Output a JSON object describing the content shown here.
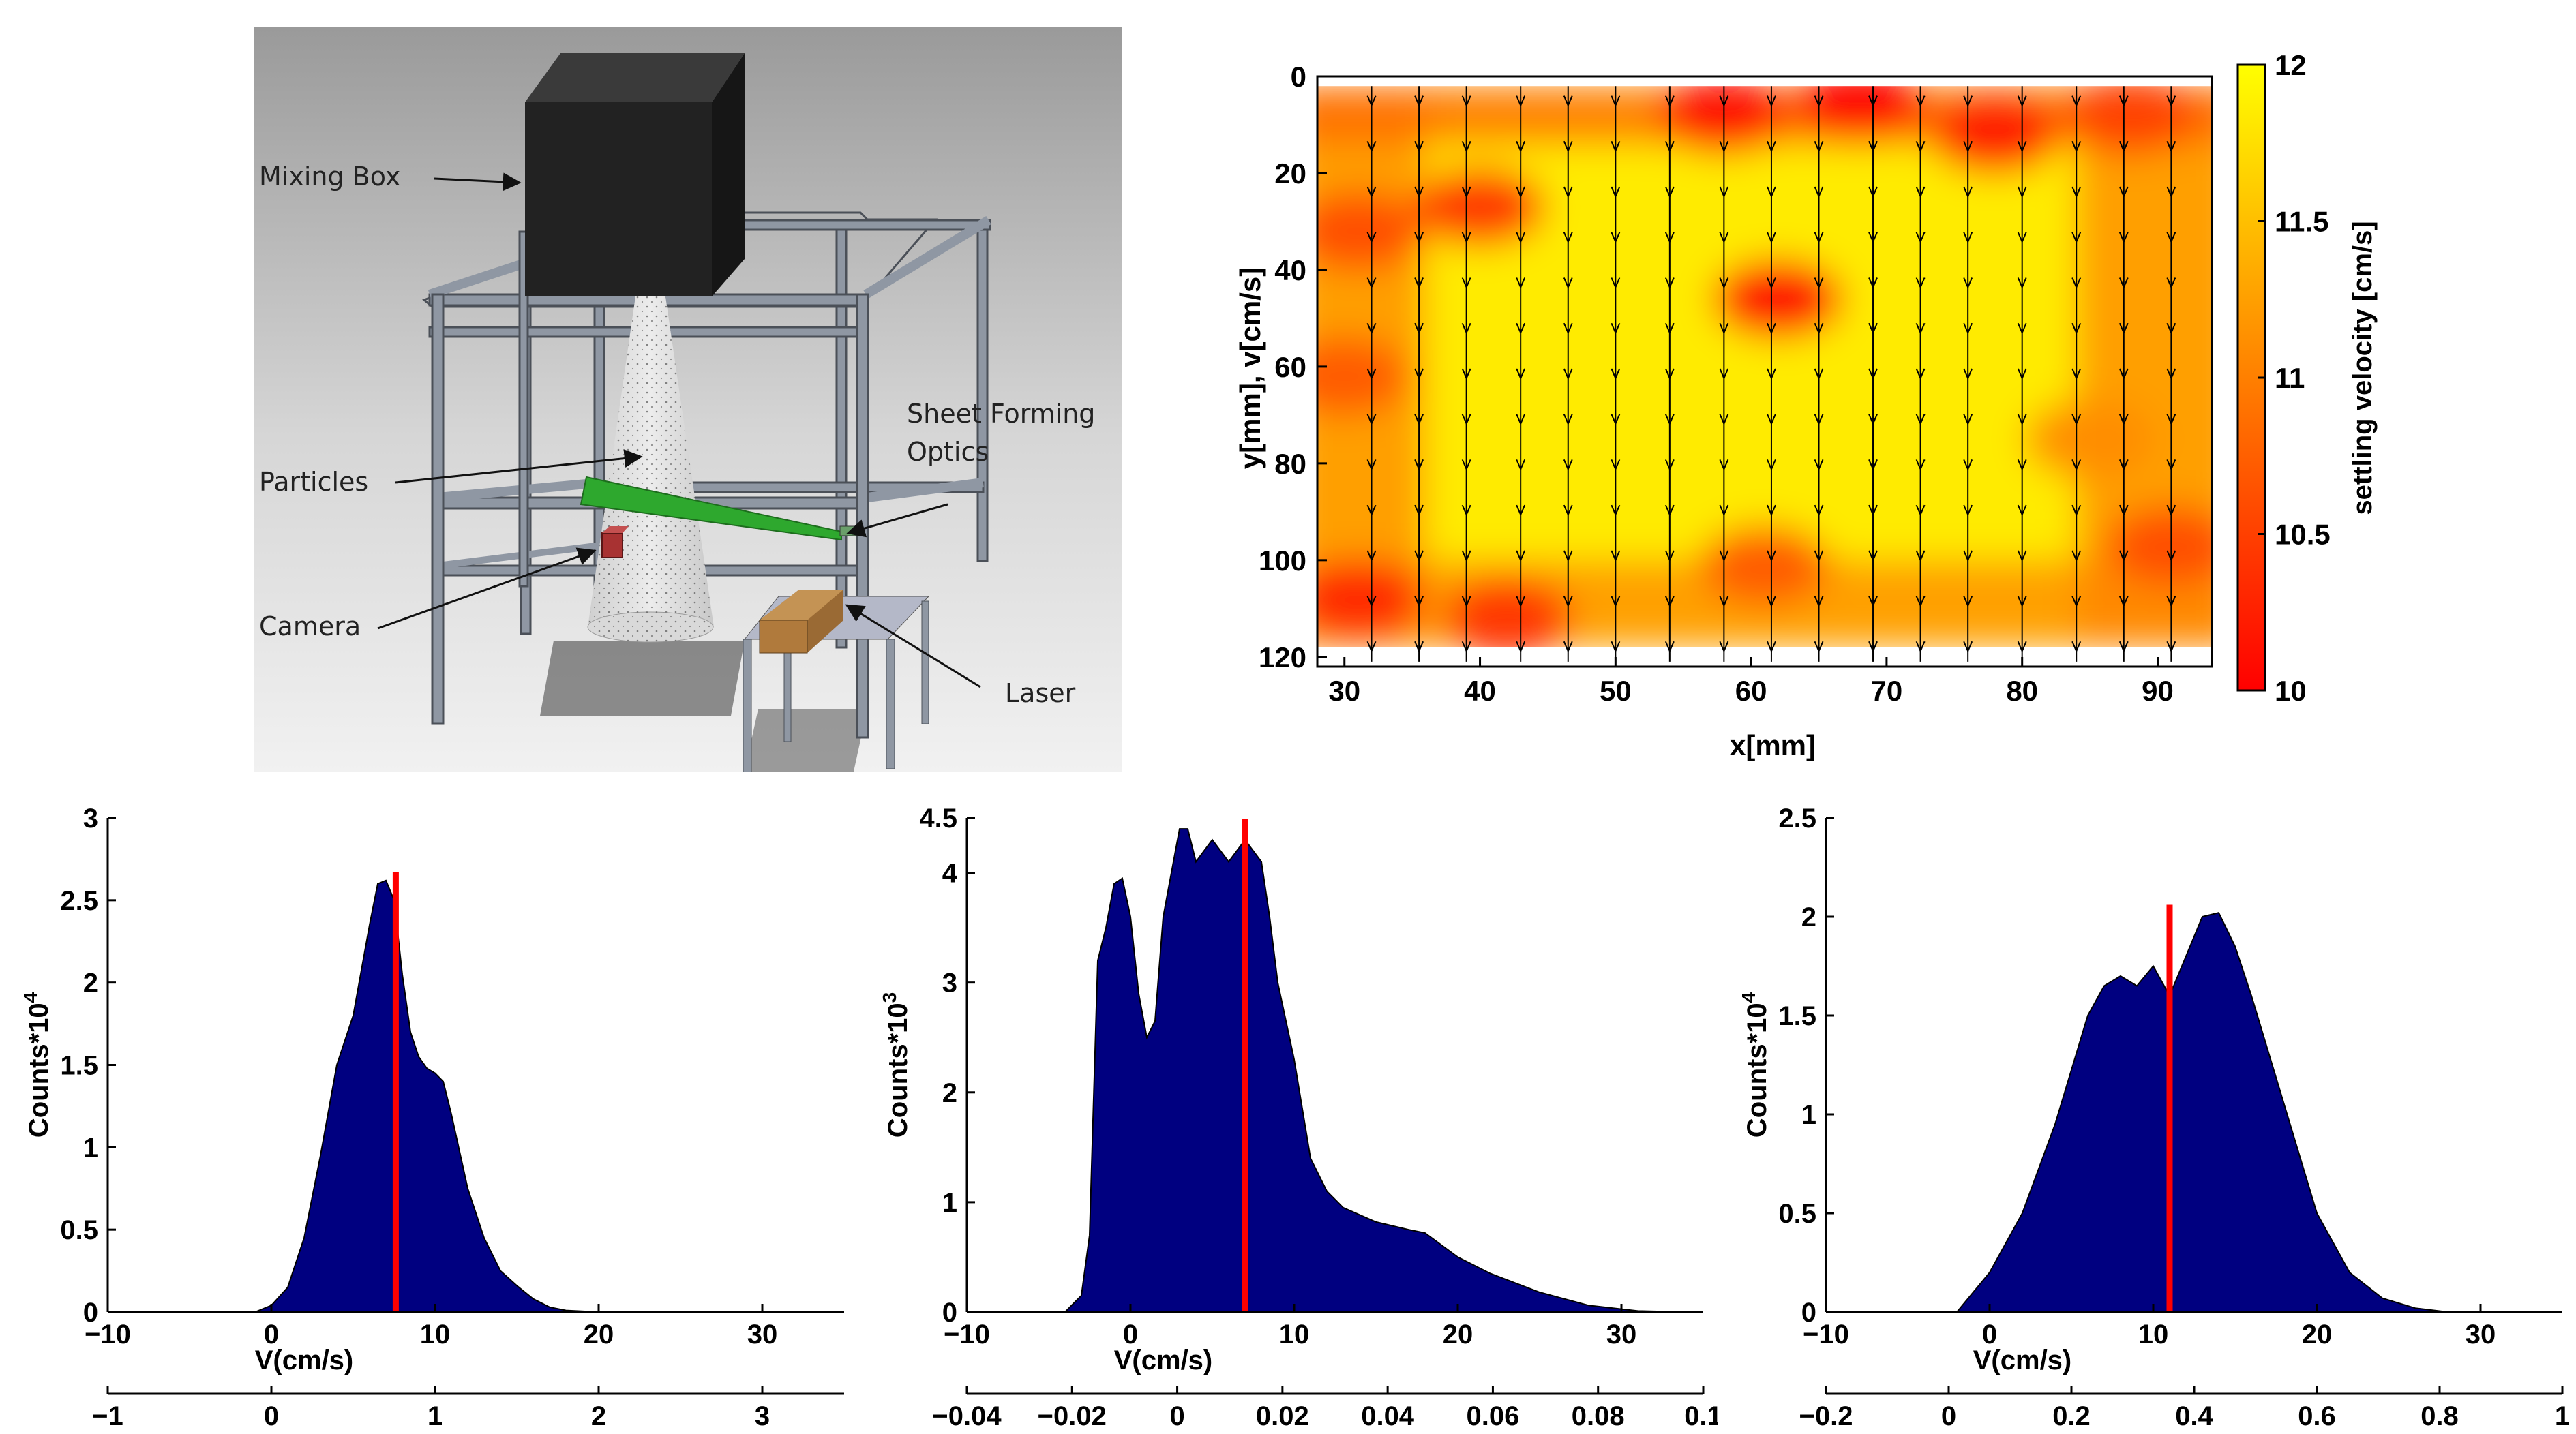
{
  "setup": {
    "labels": {
      "mixing_box": "Mixing Box",
      "particles": "Particles",
      "camera": "Camera",
      "sheet_optics_line1": "Sheet Forming",
      "sheet_optics_line2": "Optics",
      "laser": "Laser"
    }
  },
  "chart_data": [
    {
      "type": "heatmap",
      "xlabel": "x[mm]",
      "ylabel": "y[mm], v[cm/s]",
      "colorbar_label": "settling velocity [cm/s]",
      "xlim": [
        28,
        94
      ],
      "ylim": [
        0,
        122
      ],
      "y_reversed": true,
      "x_ticks": [
        30,
        40,
        50,
        60,
        70,
        80,
        90
      ],
      "y_ticks": [
        0,
        20,
        40,
        60,
        80,
        100,
        120
      ],
      "colorbar_range": [
        10,
        12
      ],
      "colorbar_ticks": [
        10,
        10.5,
        11,
        11.5,
        12
      ],
      "colorbar_tick_labels": [
        "10",
        "10.5",
        "11",
        "11.5",
        "12"
      ],
      "colormap": "autumn",
      "colors": {
        "low": "#ff0000",
        "high": "#ffff00"
      },
      "vector_columns_x": [
        32,
        35.5,
        39,
        43,
        46.5,
        50,
        54,
        58,
        61.5,
        65,
        69,
        72.5,
        76,
        80,
        84,
        87.5,
        91
      ],
      "vector_direction": "down",
      "field_blobs": [
        {
          "x": 58,
          "y": 8,
          "v": 10.1
        },
        {
          "x": 68,
          "y": 6,
          "v": 10.0
        },
        {
          "x": 78,
          "y": 12,
          "v": 10.2
        },
        {
          "x": 88,
          "y": 8,
          "v": 10.5
        },
        {
          "x": 62,
          "y": 46,
          "v": 10.1
        },
        {
          "x": 40,
          "y": 27,
          "v": 10.4
        },
        {
          "x": 31,
          "y": 32,
          "v": 10.6
        },
        {
          "x": 30,
          "y": 62,
          "v": 10.7
        },
        {
          "x": 31,
          "y": 108,
          "v": 10.3
        },
        {
          "x": 42,
          "y": 112,
          "v": 10.4
        },
        {
          "x": 61,
          "y": 101,
          "v": 10.7
        },
        {
          "x": 91,
          "y": 97,
          "v": 10.6
        },
        {
          "x": 85,
          "y": 75,
          "v": 11.1
        }
      ]
    },
    {
      "type": "area",
      "xlabel": "V(cm/s)",
      "ylabel": "Counts*10^4",
      "ylabel_base": "Counts*10",
      "ylabel_exp": "4",
      "xlim": [
        -10,
        35
      ],
      "ylim": [
        0,
        3
      ],
      "x_ticks": [
        -10,
        0,
        10,
        20,
        30
      ],
      "y_ticks": [
        0,
        0.5,
        1,
        1.5,
        2,
        2.5,
        3
      ],
      "secondary_x_ticks": [
        -1,
        0,
        1,
        2,
        3
      ],
      "secondary_xlim": [
        -1,
        3.5
      ],
      "marker_x": 7.6,
      "fill_color": "#000080",
      "marker_color": "#ff0000",
      "x": [
        -10,
        -1,
        0,
        1,
        2,
        3,
        4,
        5,
        6,
        6.5,
        7,
        7.5,
        8,
        8.5,
        9,
        9.5,
        10,
        10.5,
        11,
        12,
        13,
        14,
        15,
        16,
        17,
        18,
        20,
        35
      ],
      "y": [
        0,
        0,
        0.04,
        0.15,
        0.45,
        0.95,
        1.5,
        1.8,
        2.35,
        2.6,
        2.62,
        2.5,
        2.05,
        1.7,
        1.55,
        1.48,
        1.45,
        1.4,
        1.2,
        0.75,
        0.45,
        0.25,
        0.16,
        0.08,
        0.03,
        0.01,
        0,
        0
      ]
    },
    {
      "type": "area",
      "xlabel": "V(cm/s)",
      "ylabel": "Counts*10^3",
      "ylabel_base": "Counts*10",
      "ylabel_exp": "3",
      "xlim": [
        -10,
        35
      ],
      "ylim": [
        0,
        4.5
      ],
      "x_ticks": [
        -10,
        0,
        10,
        20,
        30
      ],
      "y_ticks": [
        0,
        1,
        2,
        3,
        4,
        4.5
      ],
      "secondary_x_ticks": [
        -0.04,
        -0.02,
        0,
        0.02,
        0.04,
        0.06,
        0.08,
        0.1
      ],
      "secondary_xlim": [
        -0.04,
        0.1
      ],
      "marker_x": 7.0,
      "fill_color": "#000080",
      "marker_color": "#ff0000",
      "x": [
        -10,
        -4,
        -3,
        -2.5,
        -2,
        -1.5,
        -1,
        -0.5,
        0,
        0.5,
        1,
        1.5,
        2,
        3,
        3.5,
        4,
        5,
        6,
        7,
        8,
        8.5,
        9,
        10,
        11,
        12,
        13,
        15,
        17,
        18,
        20,
        22,
        25,
        28,
        31,
        34,
        35
      ],
      "y": [
        0,
        0,
        0.15,
        0.7,
        3.2,
        3.5,
        3.9,
        3.95,
        3.6,
        2.9,
        2.5,
        2.65,
        3.6,
        4.4,
        4.4,
        4.1,
        4.3,
        4.1,
        4.3,
        4.1,
        3.6,
        3.0,
        2.3,
        1.4,
        1.1,
        0.95,
        0.82,
        0.75,
        0.72,
        0.5,
        0.35,
        0.18,
        0.06,
        0.01,
        0,
        0
      ]
    },
    {
      "type": "area",
      "xlabel": "V(cm/s)",
      "ylabel": "Counts*10^4",
      "ylabel_base": "Counts*10",
      "ylabel_exp": "4",
      "xlim": [
        -10,
        35
      ],
      "ylim": [
        0,
        2.5
      ],
      "x_ticks": [
        -10,
        0,
        10,
        20,
        30
      ],
      "y_ticks": [
        0,
        0.5,
        1,
        1.5,
        2,
        2.5
      ],
      "secondary_x_ticks": [
        -0.2,
        0,
        0.2,
        0.4,
        0.6,
        0.8,
        1
      ],
      "secondary_xlim": [
        -0.2,
        1
      ],
      "marker_x": 11.0,
      "fill_color": "#000080",
      "marker_color": "#ff0000",
      "x": [
        -10,
        -2,
        -1,
        0,
        2,
        4,
        6,
        7,
        8,
        9,
        10,
        11,
        12,
        13,
        14,
        15,
        16,
        18,
        20,
        22,
        24,
        26,
        28,
        35
      ],
      "y": [
        0,
        0,
        0.1,
        0.2,
        0.5,
        0.95,
        1.5,
        1.65,
        1.7,
        1.65,
        1.75,
        1.6,
        1.8,
        2.0,
        2.02,
        1.85,
        1.6,
        1.05,
        0.5,
        0.2,
        0.07,
        0.02,
        0,
        0
      ]
    }
  ]
}
